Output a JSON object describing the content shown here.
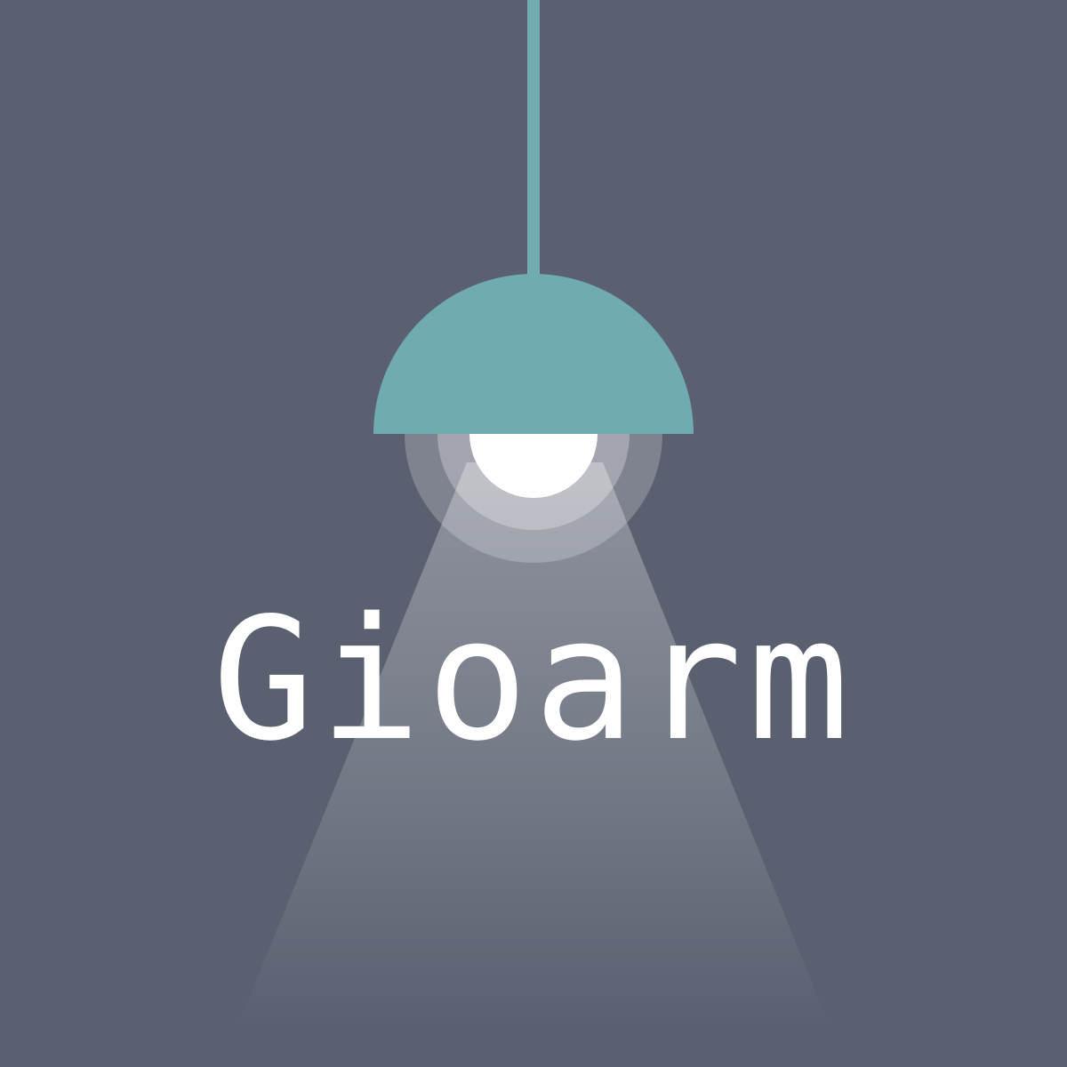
{
  "brand": {
    "name": "Gioarm"
  },
  "colors": {
    "background": "#5a6070",
    "lamp": "#70abb2",
    "bulb": "#ffffff",
    "text": "#ffffff"
  },
  "icons": {
    "lamp": "pendant-lamp-icon"
  }
}
